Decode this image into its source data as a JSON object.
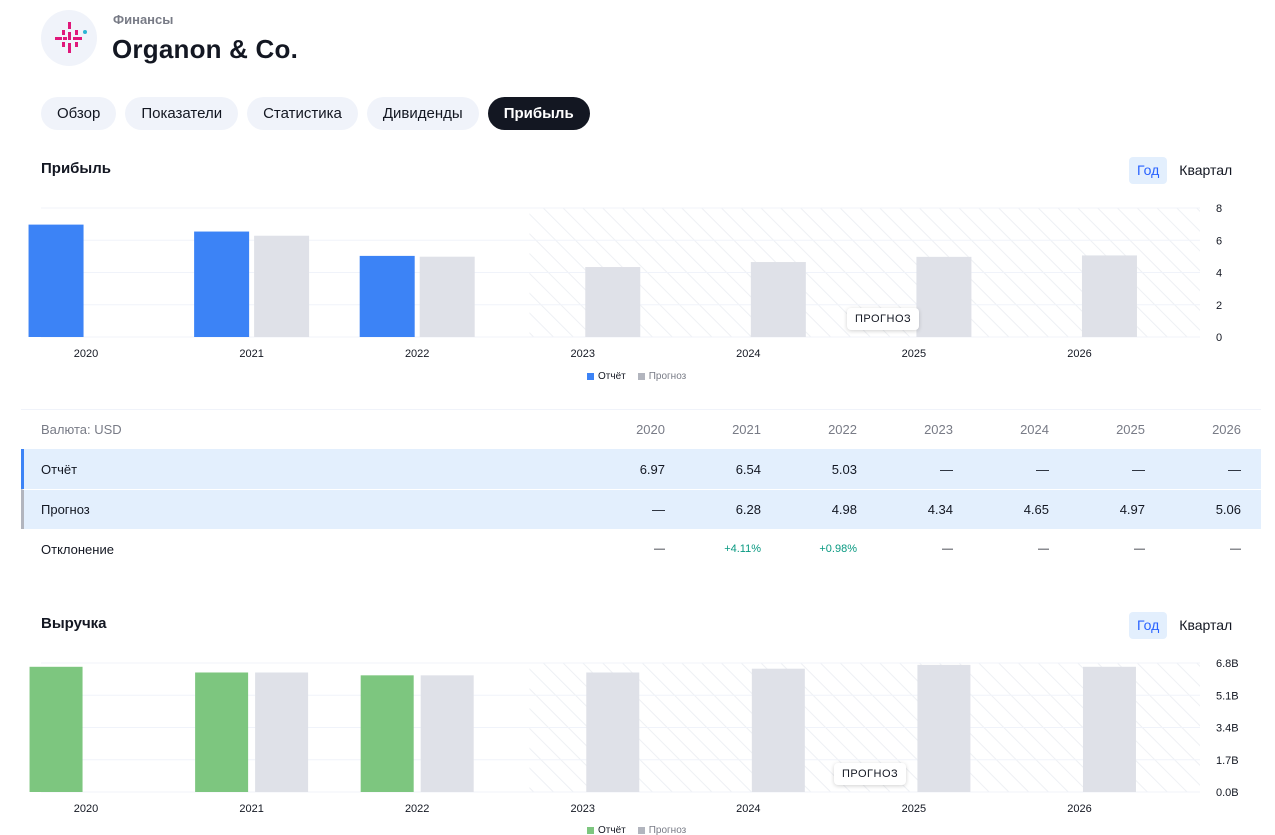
{
  "header": {
    "breadcrumb": "Финансы",
    "company": "Organon & Co."
  },
  "tabs": [
    {
      "label": "Обзор",
      "active": false
    },
    {
      "label": "Показатели",
      "active": false
    },
    {
      "label": "Статистика",
      "active": false
    },
    {
      "label": "Дивиденды",
      "active": false
    },
    {
      "label": "Прибыль",
      "active": true
    }
  ],
  "earnings": {
    "title": "Прибыль",
    "period_options": [
      "Год",
      "Квартал"
    ],
    "period_selected": "Год",
    "forecast_badge": "ПРОГНОЗ",
    "legend": {
      "actual": "Отчёт",
      "forecast": "Прогноз"
    }
  },
  "table": {
    "currency_label": "Валюта: USD",
    "years": [
      "2020",
      "2021",
      "2022",
      "2023",
      "2024",
      "2025",
      "2026"
    ],
    "rows": [
      {
        "label": "Отчёт",
        "values": [
          "6.97",
          "6.54",
          "5.03",
          "—",
          "—",
          "—",
          "—"
        ]
      },
      {
        "label": "Прогноз",
        "values": [
          "—",
          "6.28",
          "4.98",
          "4.34",
          "4.65",
          "4.97",
          "5.06"
        ]
      },
      {
        "label": "Отклонение",
        "values": [
          "—",
          "+4.11%",
          "+0.98%",
          "—",
          "—",
          "—",
          "—"
        ]
      }
    ]
  },
  "revenue": {
    "title": "Выручка",
    "period_options": [
      "Год",
      "Квартал"
    ],
    "period_selected": "Год",
    "forecast_badge": "ПРОГНОЗ",
    "legend": {
      "actual": "Отчёт",
      "forecast": "Прогноз"
    }
  },
  "colors": {
    "earnings_actual": "#3c83f6",
    "revenue_actual": "#7dc67f",
    "forecast": "#dfe1e8",
    "positive": "#089981",
    "logo_accent": "#e0177a"
  },
  "chart_data": [
    {
      "type": "bar",
      "title": "Прибыль",
      "categories": [
        "2020",
        "2021",
        "2022",
        "2023",
        "2024",
        "2025",
        "2026"
      ],
      "series": [
        {
          "name": "Отчёт",
          "values": [
            6.97,
            6.54,
            5.03,
            null,
            null,
            null,
            null
          ]
        },
        {
          "name": "Прогноз",
          "values": [
            null,
            6.28,
            4.98,
            4.34,
            4.65,
            4.97,
            5.06
          ]
        }
      ],
      "yticks": [
        "0",
        "2",
        "4",
        "6",
        "8"
      ],
      "ylim": [
        0,
        8
      ],
      "legend_position": "bottom-center"
    },
    {
      "type": "bar",
      "title": "Выручка",
      "categories": [
        "2020",
        "2021",
        "2022",
        "2023",
        "2024",
        "2025",
        "2026"
      ],
      "series": [
        {
          "name": "Отчёт",
          "values": [
            6.6,
            6.3,
            6.15,
            null,
            null,
            null,
            null
          ]
        },
        {
          "name": "Прогноз",
          "values": [
            null,
            6.3,
            6.15,
            6.3,
            6.5,
            6.7,
            6.6
          ]
        }
      ],
      "yticks": [
        "0.0B",
        "1.7B",
        "3.4B",
        "5.1B",
        "6.8B"
      ],
      "ylim": [
        0,
        6.8
      ],
      "legend_position": "bottom-center"
    }
  ]
}
